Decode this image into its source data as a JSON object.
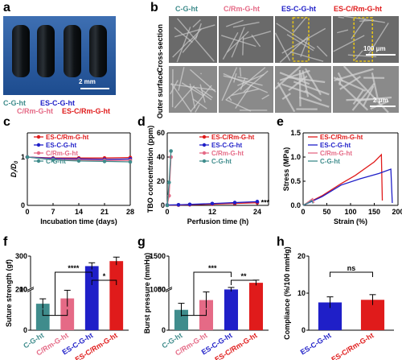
{
  "panel_labels": {
    "a": "a",
    "b": "b",
    "c": "c",
    "d": "d",
    "e": "e",
    "f": "f",
    "g": "g",
    "h": "h"
  },
  "colors": {
    "c_g": "#3f8c8c",
    "c_rm": "#e56a86",
    "es_c": "#1f1fc8",
    "es_crm": "#e01b1b"
  },
  "panel_a": {
    "scale_bar": "2 mm",
    "labels": [
      "C-G-ht",
      "C/Rm-G-ht",
      "ES-C-G-ht",
      "ES-C/Rm-G-ht"
    ]
  },
  "panel_b": {
    "columns": [
      "C-G-ht",
      "C/Rm-G-ht",
      "ES-C-G-ht",
      "ES-C/Rm-G-ht"
    ],
    "row1": "Cross-section",
    "row2": "Outer surface",
    "scale1": "100 μm",
    "scale2": "2 μm"
  },
  "chart_data": [
    {
      "panel": "c",
      "type": "line",
      "ylabel": "D_i/D_0",
      "xlabel": "Incubation time (days)",
      "x": [
        0,
        7,
        14,
        21,
        28
      ],
      "xlim": [
        0,
        28
      ],
      "ylim": [
        0,
        1.5
      ],
      "xticks": [
        "0",
        "7",
        "14",
        "21",
        "28"
      ],
      "yticks": [
        "0",
        "1"
      ],
      "series": [
        {
          "name": "ES-C/Rm-G-ht",
          "color": "#e01b1b",
          "values": [
            1.0,
            0.98,
            0.98,
            0.98,
            0.99
          ]
        },
        {
          "name": "ES-C-G-ht",
          "color": "#1f1fc8",
          "values": [
            1.0,
            0.97,
            0.96,
            0.95,
            0.96
          ]
        },
        {
          "name": "C/Rm-G-ht",
          "color": "#e56a86",
          "values": [
            1.0,
            0.95,
            0.94,
            0.93,
            0.93
          ]
        },
        {
          "name": "C-G-ht",
          "color": "#3f8c8c",
          "values": [
            1.0,
            0.94,
            0.92,
            0.91,
            0.9
          ]
        }
      ]
    },
    {
      "panel": "d",
      "type": "line",
      "ylabel": "TBO concentration (ppm)",
      "xlabel": "Perfusion time (h)",
      "xlim": [
        0,
        27
      ],
      "ylim": [
        0,
        60
      ],
      "xticks": [
        "0",
        "12",
        "24"
      ],
      "yticks": [
        "0",
        "20",
        "40",
        "60"
      ],
      "annotation": "***",
      "series": [
        {
          "name": "ES-C/Rm-G-ht",
          "color": "#e01b1b",
          "x": [
            0,
            3,
            6,
            12,
            18,
            24
          ],
          "values": [
            0.2,
            0.3,
            0.5,
            1.0,
            1.6,
            2.2
          ]
        },
        {
          "name": "ES-C-G-ht",
          "color": "#1f1fc8",
          "x": [
            0,
            3,
            6,
            12,
            18,
            24
          ],
          "values": [
            0.3,
            0.5,
            0.8,
            1.5,
            2.3,
            3.1
          ]
        },
        {
          "name": "C/Rm-G-ht",
          "color": "#e56a86",
          "x": [
            0,
            0.5,
            1
          ],
          "values": [
            0,
            8,
            40
          ]
        },
        {
          "name": "C-G-ht",
          "color": "#3f8c8c",
          "x": [
            0,
            0.5,
            1
          ],
          "values": [
            0,
            19,
            45
          ]
        }
      ]
    },
    {
      "panel": "e",
      "type": "line",
      "ylabel": "Stress (MPa)",
      "xlabel": "Strain (%)",
      "xlim": [
        0,
        200
      ],
      "ylim": [
        0,
        1.5
      ],
      "xticks": [
        "0",
        "50",
        "100",
        "150",
        "200"
      ],
      "yticks": [
        "0.0",
        "0.5",
        "1.0",
        "1.5"
      ],
      "series": [
        {
          "name": "ES-C/Rm-G-ht",
          "color": "#e01b1b",
          "x": [
            0,
            40,
            80,
            110,
            150,
            165,
            167
          ],
          "values": [
            0,
            0.2,
            0.45,
            0.62,
            0.9,
            1.05,
            0.1
          ]
        },
        {
          "name": "ES-C-G-ht",
          "color": "#1f1fc8",
          "x": [
            0,
            40,
            80,
            120,
            160,
            185,
            188
          ],
          "values": [
            0,
            0.18,
            0.42,
            0.55,
            0.66,
            0.75,
            0.05
          ]
        },
        {
          "name": "C/Rm-G-ht",
          "color": "#e56a86",
          "x": [
            0,
            12,
            20,
            23
          ],
          "values": [
            0,
            0.08,
            0.14,
            0.05
          ]
        },
        {
          "name": "C-G-ht",
          "color": "#3f8c8c",
          "x": [
            0,
            12,
            18,
            21
          ],
          "values": [
            0,
            0.06,
            0.1,
            0.04
          ]
        }
      ]
    },
    {
      "panel": "f",
      "type": "bar",
      "ylabel": "Suture strength (gf)",
      "categories": [
        "C-G-ht",
        "C/Rm-G-ht",
        "ES-C-G-ht",
        "ES-C/Rm-G-ht"
      ],
      "values": [
        6.5,
        7.8,
        270,
        285
      ],
      "errors": [
        1.2,
        2.0,
        10,
        12
      ],
      "low_ticks": [
        "0",
        "10"
      ],
      "high_ticks": [
        "200",
        "300"
      ],
      "significance": [
        {
          "pair": [
            1,
            3
          ],
          "label": "****"
        },
        {
          "pair": [
            3,
            4
          ],
          "label": "*"
        }
      ]
    },
    {
      "panel": "g",
      "type": "bar",
      "ylabel": "Burst pressure (mmHg)",
      "categories": [
        "C-G-ht",
        "C/Rm-G-ht",
        "ES-C-G-ht",
        "ES-C/Rm-G-ht"
      ],
      "values": [
        25,
        37,
        1000,
        1100
      ],
      "errors": [
        8,
        10,
        30,
        40
      ],
      "low_ticks": [
        "0",
        "50"
      ],
      "high_ticks": [
        "1000",
        "1500"
      ],
      "significance": [
        {
          "pair": [
            1,
            3
          ],
          "label": "***"
        },
        {
          "pair": [
            3,
            4
          ],
          "label": "**"
        }
      ]
    },
    {
      "panel": "h",
      "type": "bar",
      "ylabel": "Compliance (%/100 mmHg)",
      "categories": [
        "ES-C-G-ht",
        "ES-C/Rm-G-ht"
      ],
      "values": [
        7.5,
        8.2
      ],
      "errors": [
        1.5,
        1.4
      ],
      "yticks": [
        "0",
        "10",
        "20"
      ],
      "ylim": [
        0,
        20
      ],
      "significance": [
        {
          "pair": [
            1,
            2
          ],
          "label": "ns"
        }
      ]
    }
  ]
}
